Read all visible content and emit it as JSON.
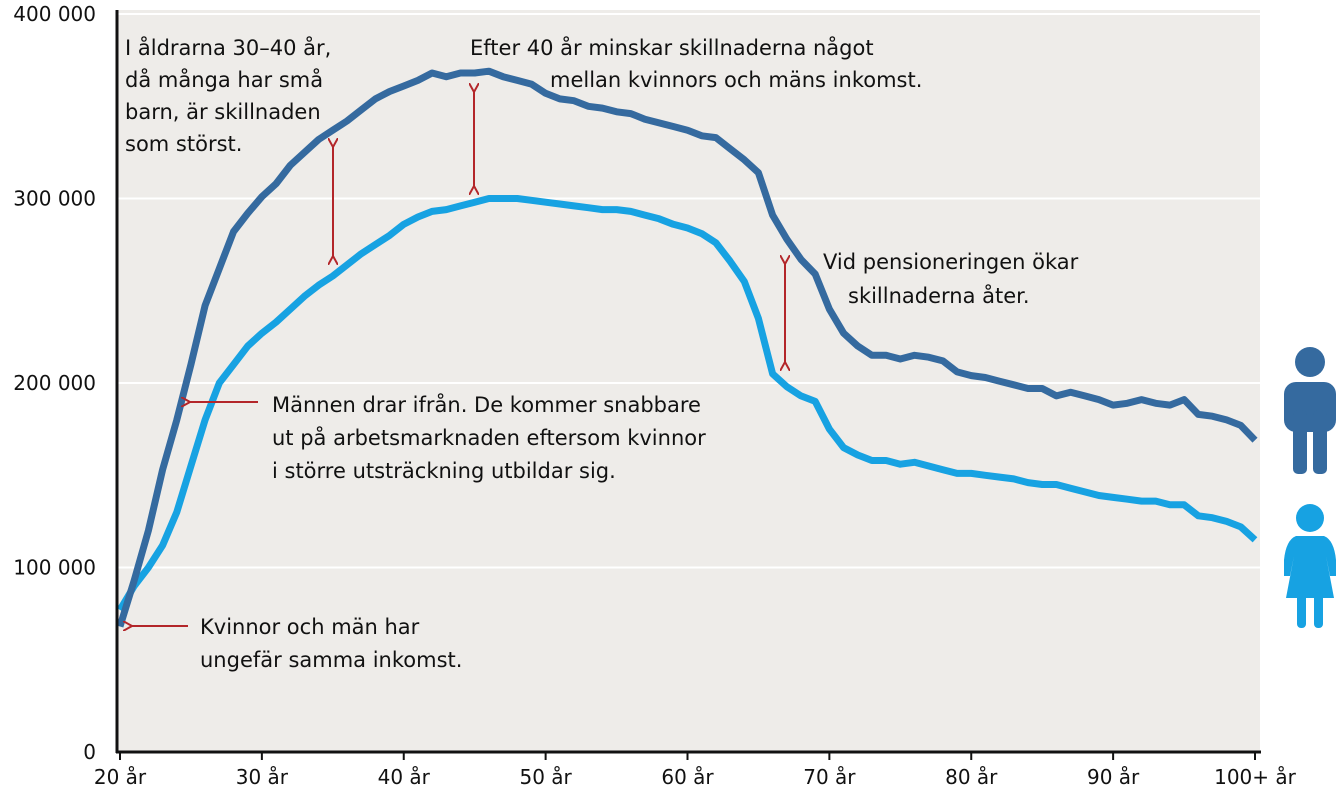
{
  "chart_data": {
    "type": "line",
    "x": [
      20,
      21,
      22,
      23,
      24,
      25,
      26,
      27,
      28,
      29,
      30,
      31,
      32,
      33,
      34,
      35,
      36,
      37,
      38,
      39,
      40,
      41,
      42,
      43,
      44,
      45,
      46,
      47,
      48,
      49,
      50,
      51,
      52,
      53,
      54,
      55,
      56,
      57,
      58,
      59,
      60,
      61,
      62,
      63,
      64,
      65,
      66,
      67,
      68,
      69,
      70,
      71,
      72,
      73,
      74,
      75,
      76,
      77,
      78,
      79,
      80,
      81,
      82,
      83,
      84,
      85,
      86,
      87,
      88,
      89,
      90,
      91,
      92,
      93,
      94,
      95,
      96,
      97,
      98,
      99,
      100
    ],
    "series": [
      {
        "color": "#356a9f",
        "values": [
          68000,
          93000,
          120000,
          153000,
          180000,
          210000,
          242000,
          262000,
          282000,
          292000,
          301000,
          308000,
          318000,
          325000,
          332000,
          337000,
          342000,
          348000,
          354000,
          358000,
          361000,
          364000,
          368000,
          366000,
          368000,
          368000,
          369000,
          366000,
          364000,
          362000,
          357000,
          354000,
          353000,
          350000,
          349000,
          347000,
          346000,
          343000,
          341000,
          339000,
          337000,
          334000,
          333000,
          327000,
          321000,
          314000,
          291000,
          278000,
          267000,
          259000,
          240000,
          227000,
          220000,
          215000,
          215000,
          213000,
          215000,
          214000,
          212000,
          206000,
          204000,
          203000,
          201000,
          199000,
          197000,
          197000,
          193000,
          195000,
          193000,
          191000,
          188000,
          189000,
          191000,
          189000,
          188000,
          191000,
          183000,
          182000,
          180000,
          177000,
          169000
        ]
      },
      {
        "color": "#17a2e2",
        "values": [
          77000,
          90000,
          100000,
          112000,
          130000,
          155000,
          180000,
          200000,
          210000,
          220000,
          227000,
          233000,
          240000,
          247000,
          253000,
          258000,
          264000,
          270000,
          275000,
          280000,
          286000,
          290000,
          293000,
          294000,
          296000,
          298000,
          300000,
          300000,
          300000,
          299000,
          298000,
          297000,
          296000,
          295000,
          294000,
          294000,
          293000,
          291000,
          289000,
          286000,
          284000,
          281000,
          276000,
          266000,
          255000,
          235000,
          205000,
          198000,
          193000,
          190000,
          175000,
          165000,
          161000,
          158000,
          158000,
          156000,
          157000,
          155000,
          153000,
          151000,
          151000,
          150000,
          149000,
          148000,
          146000,
          145000,
          145000,
          143000,
          141000,
          139000,
          138000,
          137000,
          136000,
          136000,
          134000,
          134000,
          128000,
          127000,
          125000,
          122000,
          115000
        ]
      }
    ],
    "xlim": [
      20,
      100
    ],
    "xticks": [
      {
        "value": 20,
        "label": "20 år"
      },
      {
        "value": 30,
        "label": "30 år"
      },
      {
        "value": 40,
        "label": "40 år"
      },
      {
        "value": 50,
        "label": "50 år"
      },
      {
        "value": 60,
        "label": "60 år"
      },
      {
        "value": 70,
        "label": "70 år"
      },
      {
        "value": 80,
        "label": "80 år"
      },
      {
        "value": 90,
        "label": "90 år"
      },
      {
        "value": 100,
        "label": "100+ år"
      }
    ],
    "ylim": [
      0,
      400000
    ],
    "yticks": [
      0,
      {
        "value": 100000,
        "label": "100 000"
      },
      {
        "value": 200000,
        "label": "200 000"
      },
      {
        "value": 300000,
        "label": "300 000"
      },
      {
        "value": 400000,
        "label": "400 000"
      }
    ],
    "grid": true,
    "annotations": [
      [
        "I åldrarna 30–40 år,",
        "då många har små",
        "barn, är skillnaden",
        "som störst."
      ],
      [
        "Efter 40 år minskar skillnaderna något",
        "mellan kvinnors och mäns inkomst."
      ],
      [
        "Vid pensioneringen ökar",
        "skillnaderna åter."
      ],
      [
        "Männen drar ifrån. De kommer snabbare",
        "ut på arbetsmarknaden eftersom kvinnor",
        "i större utsträckning utbildar sig."
      ],
      [
        "Kvinnor och män har",
        "ungefär samma inkomst."
      ]
    ]
  }
}
